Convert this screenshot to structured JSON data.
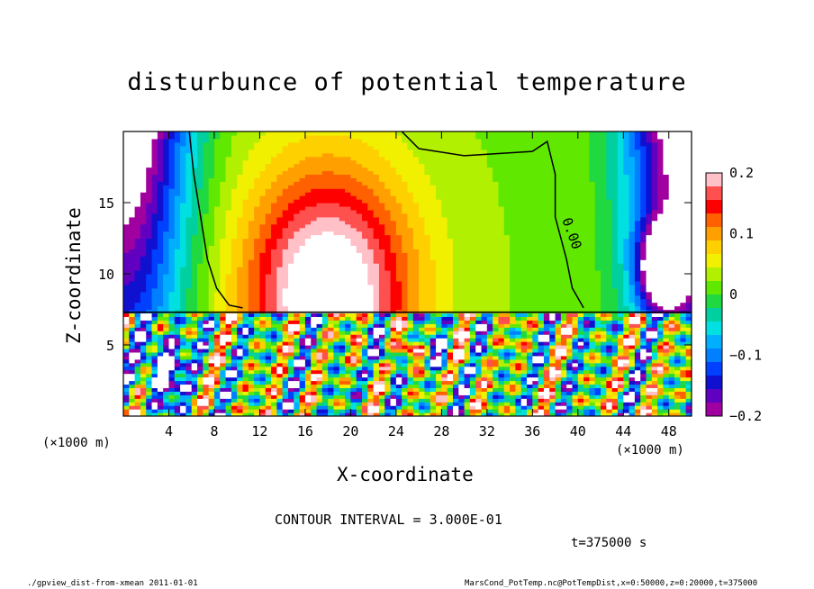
{
  "chart_data": {
    "type": "heatmap",
    "title": "disturbunce of potential temperature",
    "xlabel": "X-coordinate",
    "ylabel": "Z-coordinate",
    "x_unit": "(×1000 m)",
    "xlim": [
      0,
      50
    ],
    "ylim": [
      0,
      20
    ],
    "x_ticks": [
      4,
      8,
      12,
      16,
      20,
      24,
      28,
      32,
      36,
      40,
      44,
      48
    ],
    "y_ticks": [
      5,
      10,
      15
    ],
    "colorbar": {
      "range": [
        -0.2,
        0.2
      ],
      "ticks": [
        {
          "value": 0.2,
          "label": "0.2"
        },
        {
          "value": 0.1,
          "label": "0.1"
        },
        {
          "value": 0.0,
          "label": "0"
        },
        {
          "value": -0.1,
          "label": "−0.1"
        },
        {
          "value": -0.2,
          "label": "−0.2"
        }
      ],
      "colors": [
        "#ffc0c8",
        "#ff5050",
        "#ff0000",
        "#ff6000",
        "#ffa000",
        "#ffd000",
        "#f0f000",
        "#b0f000",
        "#60e800",
        "#20d840",
        "#00d0a0",
        "#00e0e0",
        "#00b0ff",
        "#0080ff",
        "#0040ff",
        "#1010d0",
        "#6000c0",
        "#a000a0"
      ]
    },
    "contour_label": "0.00",
    "contour_interval": "CONTOUR INTERVAL = 3.000E-01",
    "time_label": "t=375000 s"
  },
  "footer": {
    "left": "./gpview_dist-from-xmean  2011-01-01",
    "right": "MarsCond_PotTemp.nc@PotTempDist,x=0:50000,z=0:20000,t=375000"
  }
}
